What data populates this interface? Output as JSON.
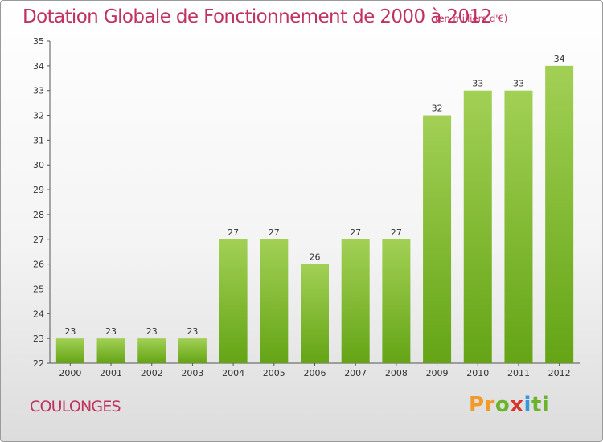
{
  "header": {
    "title": "Dotation Globale de Fonctionnement de 2000 à 2012",
    "unit_note": "(en milliers d'€)"
  },
  "footer": {
    "commune": "COULONGES",
    "logo": {
      "parts": [
        "Pr",
        "o",
        "x",
        "i",
        "ti"
      ]
    }
  },
  "chart_data": {
    "type": "bar",
    "title": "Dotation Globale de Fonctionnement de 2000 à 2012",
    "subtitle": "(en milliers d'€)",
    "xlabel": "",
    "ylabel": "",
    "categories": [
      "2000",
      "2001",
      "2002",
      "2003",
      "2004",
      "2005",
      "2006",
      "2007",
      "2008",
      "2009",
      "2010",
      "2011",
      "2012"
    ],
    "values": [
      23,
      23,
      23,
      23,
      27,
      27,
      26,
      27,
      27,
      32,
      33,
      33,
      34
    ],
    "ylim": [
      22,
      35
    ],
    "yticks": [
      22,
      23,
      24,
      25,
      26,
      27,
      28,
      29,
      30,
      31,
      32,
      33,
      34,
      35
    ],
    "grid": false,
    "colors": {
      "bar_top": "#a2d055",
      "bar_bottom": "#64a415",
      "axis": "#555555",
      "text": "#333333",
      "accent": "#c0325f"
    }
  }
}
